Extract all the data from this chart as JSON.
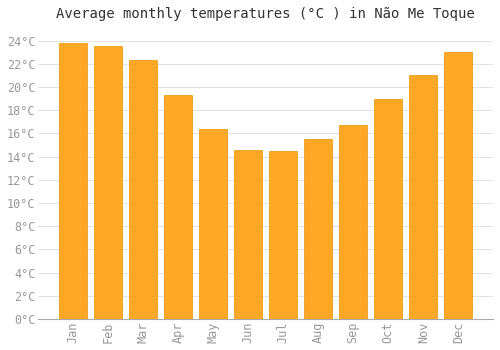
{
  "title": "Average monthly temperatures (°C ) in Não Me Toque",
  "months": [
    "Jan",
    "Feb",
    "Mar",
    "Apr",
    "May",
    "Jun",
    "Jul",
    "Aug",
    "Sep",
    "Oct",
    "Nov",
    "Dec"
  ],
  "values": [
    23.8,
    23.5,
    22.3,
    19.3,
    16.4,
    14.6,
    14.5,
    15.5,
    16.7,
    19.0,
    21.0,
    23.0
  ],
  "bar_color": "#FFA726",
  "bar_edge_color": "#E69500",
  "background_color": "#FFFFFF",
  "grid_color": "#DDDDDD",
  "text_color": "#999999",
  "ylim": [
    0,
    25
  ],
  "yticks": [
    0,
    2,
    4,
    6,
    8,
    10,
    12,
    14,
    16,
    18,
    20,
    22,
    24
  ],
  "title_fontsize": 10,
  "tick_fontsize": 8.5
}
